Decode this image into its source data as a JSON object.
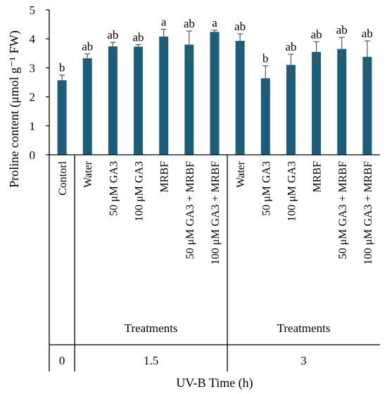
{
  "chart_data": {
    "type": "bar",
    "ylabel": "Proline content (μmol g⁻¹ FW)",
    "ylim": [
      0,
      5
    ],
    "yticks": [
      0,
      1,
      2,
      3,
      4,
      5
    ],
    "xlabel": "UV-B Time (h)",
    "bar_color": "#1b5e7b",
    "categories": [
      "Contorl",
      "Water",
      "50 μM GA3",
      "100 μM GA3",
      "MRBF",
      "50 μM GA3 + MRBF",
      "100 μM GA3 + MRBF",
      "Water",
      "50 μM GA3",
      "100 μM GA3",
      "MRBF",
      "50 μM GA3 + MRBF",
      "100 μM GA3 + MRBF"
    ],
    "values": [
      2.57,
      3.33,
      3.74,
      3.73,
      4.08,
      3.8,
      4.24,
      3.93,
      2.64,
      3.1,
      3.55,
      3.65,
      3.38
    ],
    "errors": [
      0.18,
      0.15,
      0.14,
      0.07,
      0.25,
      0.47,
      0.06,
      0.24,
      0.43,
      0.37,
      0.35,
      0.4,
      0.55
    ],
    "significance": [
      "b",
      "ab",
      "ab",
      "ab",
      "a",
      "ab",
      "a",
      "ab",
      "b",
      "ab",
      "ab",
      "ab",
      "ab"
    ],
    "groups": [
      {
        "time": "0",
        "label": "",
        "start": 0,
        "end": 0
      },
      {
        "time": "1.5",
        "label": "Treatments",
        "start": 1,
        "end": 6
      },
      {
        "time": "3",
        "label": "Treatments",
        "start": 7,
        "end": 12
      }
    ]
  }
}
